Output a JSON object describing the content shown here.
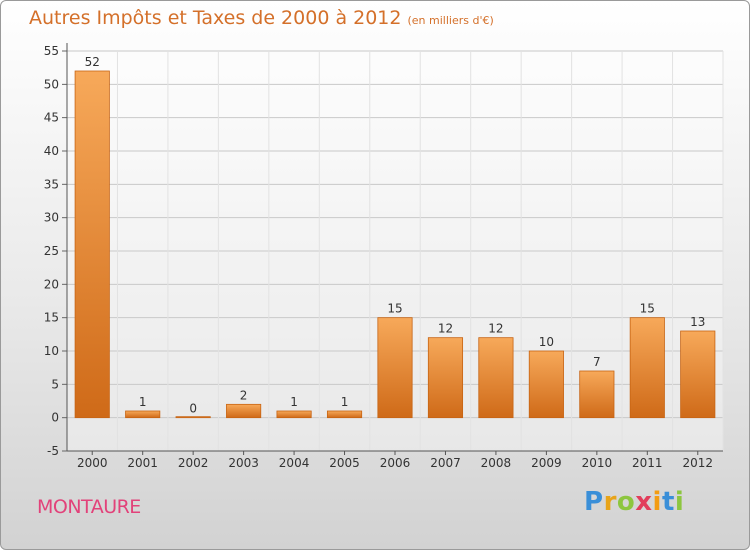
{
  "title": "Autres Impôts et Taxes de 2000 à 2012",
  "unit_label": "(en milliers d'€)",
  "commune": "MONTAURE",
  "brand": {
    "letters": [
      "P",
      "r",
      "o",
      "x",
      "i",
      "t",
      "i"
    ],
    "colors": [
      "#3a8fd8",
      "#e8a419",
      "#8dc63f",
      "#e23d5b",
      "#f39c12",
      "#3a8fd8",
      "#8dc63f"
    ]
  },
  "colors": {
    "bar_light": "#f7a95a",
    "bar_dark": "#cf6a18",
    "title": "#d4702a",
    "commune": "#e2427a",
    "grid": "#c9c9c9"
  },
  "chart_data": {
    "type": "bar",
    "categories": [
      "2000",
      "2001",
      "2002",
      "2003",
      "2004",
      "2005",
      "2006",
      "2007",
      "2008",
      "2009",
      "2010",
      "2011",
      "2012"
    ],
    "values": [
      52,
      1,
      0,
      2,
      1,
      1,
      15,
      12,
      12,
      10,
      7,
      15,
      13
    ],
    "ylim": [
      -5,
      55
    ],
    "yticks": [
      -5,
      0,
      5,
      10,
      15,
      20,
      25,
      30,
      35,
      40,
      45,
      50,
      55
    ],
    "grid": true,
    "legend": "none"
  }
}
